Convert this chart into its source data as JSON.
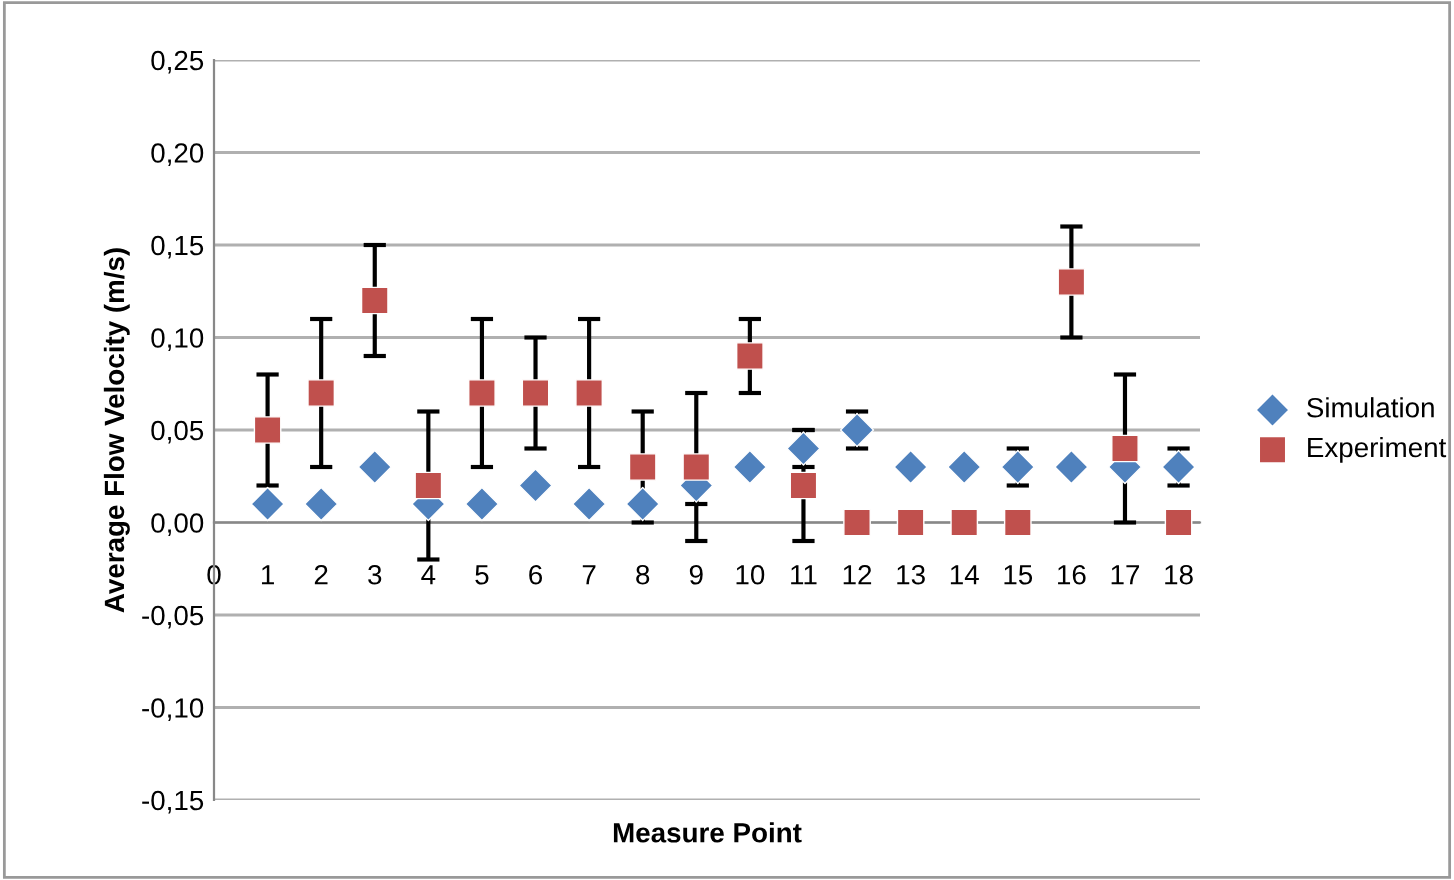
{
  "chart_data": {
    "type": "scatter",
    "xlabel": "Measure Point",
    "ylabel": "Average Flow Velocity (m/s)",
    "x": [
      1,
      2,
      3,
      4,
      5,
      6,
      7,
      8,
      9,
      10,
      11,
      12,
      13,
      14,
      15,
      16,
      17,
      18
    ],
    "series": [
      {
        "name": "Simulation",
        "color": "#4f81bd",
        "marker": "diamond",
        "values": [
          0.01,
          0.01,
          0.03,
          0.01,
          0.01,
          0.02,
          0.01,
          0.01,
          0.02,
          0.03,
          0.04,
          0.05,
          0.03,
          0.03,
          0.03,
          0.03,
          0.03,
          0.03
        ],
        "errors": [
          null,
          null,
          null,
          null,
          null,
          null,
          null,
          null,
          0.01,
          null,
          0.01,
          0.01,
          null,
          null,
          0.01,
          null,
          null,
          0.01
        ]
      },
      {
        "name": "Experiment",
        "color": "#c0504d",
        "marker": "square",
        "values": [
          0.05,
          0.07,
          0.12,
          0.02,
          0.07,
          0.07,
          0.07,
          0.03,
          0.03,
          0.09,
          0.02,
          0,
          0,
          0,
          0,
          0.13,
          0.04,
          0
        ],
        "errors": [
          0.03,
          0.04,
          0.03,
          0.04,
          0.04,
          0.03,
          0.04,
          0.03,
          0.04,
          0.02,
          0.03,
          null,
          null,
          null,
          null,
          0.03,
          0.04,
          null
        ]
      }
    ],
    "xlim": [
      0,
      18.4
    ],
    "xticks": [
      0,
      1,
      2,
      3,
      4,
      5,
      6,
      7,
      8,
      9,
      10,
      11,
      12,
      13,
      14,
      15,
      16,
      17,
      18
    ],
    "ylim": [
      -0.15,
      0.25
    ],
    "yticks": [
      {
        "value": -0.15,
        "label": "-0,15"
      },
      {
        "value": -0.1,
        "label": "-0,10"
      },
      {
        "value": -0.05,
        "label": "-0,05"
      },
      {
        "value": 0,
        "label": "0,00"
      },
      {
        "value": 0.05,
        "label": "0,05"
      },
      {
        "value": 0.1,
        "label": "0,10"
      },
      {
        "value": 0.15,
        "label": "0,15"
      },
      {
        "value": 0.2,
        "label": "0,20"
      },
      {
        "value": 0.25,
        "label": "0,25"
      }
    ],
    "grid": "y",
    "legend": "right"
  }
}
